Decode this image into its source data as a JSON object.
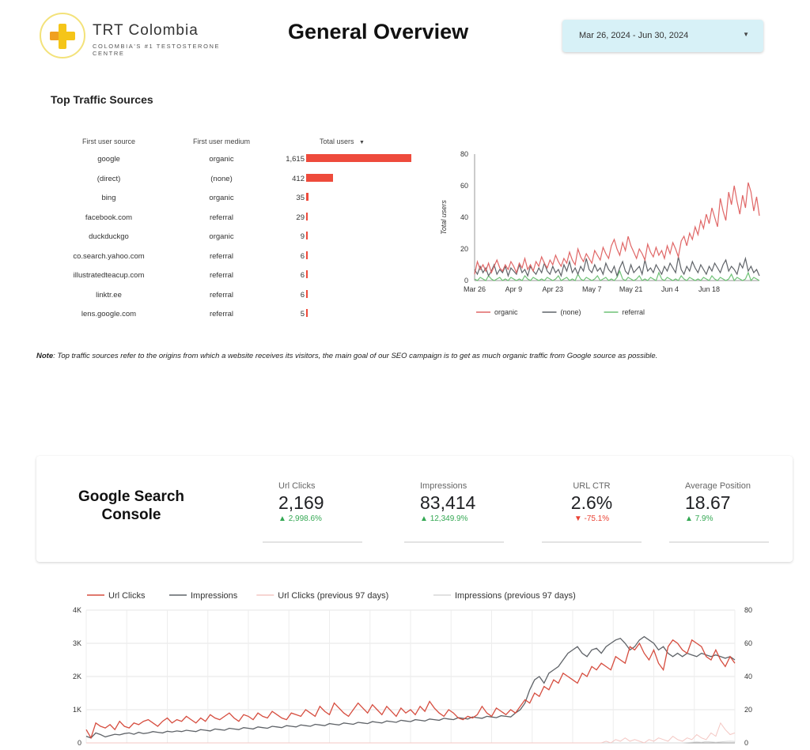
{
  "header": {
    "brand_name": "TRT Colombia",
    "brand_tagline": "COLOMBIA'S #1 TESTOSTERONE CENTRE",
    "title": "General Overview",
    "date_range": "Mar 26, 2024 - Jun 30, 2024"
  },
  "traffic": {
    "title": "Top Traffic Sources",
    "columns": [
      "First user source",
      "First user medium",
      "Total users"
    ],
    "rows": [
      {
        "source": "google",
        "medium": "organic",
        "users": "1,615",
        "value": 1615
      },
      {
        "source": "(direct)",
        "medium": "(none)",
        "users": "412",
        "value": 412
      },
      {
        "source": "bing",
        "medium": "organic",
        "users": "35",
        "value": 35
      },
      {
        "source": "facebook.com",
        "medium": "referral",
        "users": "29",
        "value": 29
      },
      {
        "source": "duckduckgo",
        "medium": "organic",
        "users": "9",
        "value": 9
      },
      {
        "source": "co.search.yahoo.com",
        "medium": "referral",
        "users": "6",
        "value": 6
      },
      {
        "source": "illustratedteacup.com",
        "medium": "referral",
        "users": "6",
        "value": 6
      },
      {
        "source": "linktr.ee",
        "medium": "referral",
        "users": "6",
        "value": 6
      },
      {
        "source": "lens.google.com",
        "medium": "referral",
        "users": "5",
        "value": 5
      }
    ],
    "note_label": "Note",
    "note_text": ": Top traffic sources refer to the origins from which a website receives its visitors, the main goal of our SEO campaign is to get as much organic traffic from Google source as possible."
  },
  "gsc": {
    "title_line1": "Google Search",
    "title_line2": "Console",
    "kpis": [
      {
        "label": "Url Clicks",
        "value": "2,169",
        "delta": "2,998.6%",
        "direction": "up"
      },
      {
        "label": "Impressions",
        "value": "83,414",
        "delta": "12,349.9%",
        "direction": "up"
      },
      {
        "label": "URL CTR",
        "value": "2.6%",
        "delta": "-75.1%",
        "direction": "down"
      },
      {
        "label": "Average Position",
        "value": "18.67",
        "delta": "7.9%",
        "direction": "up"
      }
    ]
  },
  "chart_data": [
    {
      "type": "line",
      "ylabel": "Total users",
      "xlabel": "",
      "ylim": [
        0,
        80
      ],
      "yticks": [
        0,
        20,
        40,
        60,
        80
      ],
      "xticks": [
        "Mar 26",
        "Apr 9",
        "Apr 23",
        "May 7",
        "May 21",
        "Jun 4",
        "Jun 18"
      ],
      "legend_position": "bottom",
      "grid": false,
      "series": [
        {
          "name": "organic",
          "color": "#e06666",
          "values": [
            4,
            12,
            7,
            10,
            6,
            11,
            5,
            9,
            13,
            8,
            6,
            10,
            7,
            12,
            9,
            5,
            11,
            8,
            14,
            7,
            10,
            6,
            12,
            9,
            15,
            11,
            8,
            13,
            10,
            16,
            12,
            9,
            14,
            11,
            18,
            13,
            10,
            20,
            15,
            12,
            17,
            14,
            11,
            19,
            16,
            13,
            21,
            17,
            14,
            22,
            26,
            20,
            16,
            24,
            19,
            28,
            22,
            18,
            14,
            20,
            17,
            13,
            23,
            18,
            15,
            21,
            16,
            19,
            14,
            22,
            17,
            24,
            20,
            15,
            25,
            28,
            22,
            30,
            26,
            34,
            29,
            38,
            33,
            42,
            36,
            46,
            40,
            34,
            52,
            44,
            38,
            56,
            48,
            60,
            50,
            42,
            54,
            46,
            62,
            56,
            44,
            53,
            41
          ]
        },
        {
          "name": "(none)",
          "color": "#5f6368",
          "values": [
            7,
            4,
            9,
            5,
            8,
            3,
            6,
            10,
            4,
            7,
            5,
            9,
            3,
            8,
            6,
            4,
            10,
            5,
            7,
            3,
            9,
            6,
            4,
            8,
            5,
            11,
            6,
            4,
            9,
            5,
            7,
            3,
            10,
            6,
            12,
            5,
            8,
            4,
            9,
            6,
            14,
            7,
            5,
            10,
            6,
            8,
            4,
            11,
            7,
            5,
            9,
            3,
            8,
            12,
            6,
            4,
            10,
            5,
            7,
            9,
            4,
            13,
            6,
            8,
            5,
            10,
            7,
            4,
            9,
            6,
            11,
            8,
            5,
            15,
            7,
            4,
            9,
            6,
            12,
            8,
            5,
            10,
            7,
            4,
            9,
            6,
            11,
            8,
            5,
            10,
            13,
            6,
            9,
            7,
            4,
            11,
            8,
            14,
            6,
            9,
            5,
            7,
            3
          ]
        },
        {
          "name": "referral",
          "color": "#6fc276",
          "values": [
            1,
            0,
            2,
            1,
            0,
            3,
            1,
            0,
            1,
            2,
            0,
            1,
            0,
            2,
            1,
            0,
            1,
            0,
            3,
            1,
            0,
            2,
            1,
            0,
            1,
            0,
            2,
            1,
            0,
            1,
            3,
            0,
            1,
            2,
            0,
            1,
            0,
            4,
            1,
            0,
            2,
            1,
            0,
            1,
            3,
            0,
            1,
            2,
            0,
            1,
            0,
            2,
            6,
            1,
            0,
            2,
            1,
            0,
            1,
            3,
            0,
            1,
            0,
            2,
            1,
            0,
            5,
            1,
            0,
            2,
            1,
            0,
            1,
            0,
            3,
            1,
            0,
            2,
            1,
            0,
            1,
            0,
            2,
            1,
            0,
            3,
            1,
            0,
            2,
            1,
            0,
            1,
            4,
            0,
            2,
            1,
            0,
            1,
            5,
            0,
            2,
            1,
            0
          ]
        }
      ]
    },
    {
      "type": "line",
      "xlabel": "",
      "ylabel": "",
      "ylim_left": [
        0,
        4000
      ],
      "ylim_right": [
        0,
        80
      ],
      "yticks_left": [
        "0",
        "1K",
        "2K",
        "3K",
        "4K"
      ],
      "yticks_right": [
        "0",
        "20",
        "40",
        "60",
        "80"
      ],
      "grid": true,
      "legend_position": "top",
      "series": [
        {
          "name": "Url Clicks",
          "axis": "right",
          "color": "#d64d3f",
          "values": [
            8,
            3,
            12,
            10,
            9,
            11,
            8,
            13,
            10,
            9,
            12,
            11,
            13,
            14,
            12,
            10,
            13,
            15,
            12,
            14,
            13,
            16,
            14,
            12,
            15,
            13,
            17,
            15,
            14,
            16,
            18,
            15,
            13,
            17,
            16,
            14,
            18,
            16,
            15,
            19,
            17,
            15,
            14,
            18,
            17,
            16,
            20,
            18,
            16,
            22,
            19,
            17,
            24,
            21,
            18,
            16,
            20,
            24,
            21,
            18,
            23,
            20,
            17,
            22,
            19,
            16,
            21,
            18,
            20,
            17,
            22,
            19,
            25,
            21,
            18,
            16,
            20,
            18,
            15,
            14,
            16,
            15,
            17,
            22,
            18,
            16,
            21,
            19,
            17,
            20,
            18,
            22,
            26,
            24,
            30,
            28,
            34,
            32,
            38,
            36,
            42,
            40,
            38,
            36,
            42,
            40,
            46,
            44,
            48,
            46,
            44,
            52,
            50,
            48,
            58,
            56,
            60,
            54,
            50,
            56,
            48,
            44,
            58,
            62,
            60,
            56,
            54,
            62,
            60,
            58,
            52,
            50,
            56,
            50,
            46,
            52,
            48
          ]
        },
        {
          "name": "Impressions",
          "axis": "left",
          "color": "#5f6368",
          "values": [
            200,
            150,
            300,
            250,
            180,
            220,
            260,
            240,
            280,
            300,
            260,
            320,
            280,
            300,
            340,
            320,
            300,
            350,
            330,
            360,
            340,
            380,
            360,
            340,
            400,
            380,
            360,
            420,
            400,
            380,
            440,
            420,
            400,
            460,
            440,
            420,
            480,
            460,
            440,
            500,
            480,
            460,
            520,
            500,
            480,
            540,
            520,
            500,
            560,
            540,
            520,
            580,
            560,
            540,
            600,
            580,
            560,
            620,
            600,
            580,
            640,
            620,
            600,
            660,
            640,
            620,
            680,
            660,
            640,
            700,
            680,
            660,
            720,
            700,
            680,
            740,
            720,
            700,
            760,
            740,
            720,
            780,
            760,
            740,
            800,
            780,
            760,
            820,
            800,
            780,
            900,
            1000,
            1200,
            1600,
            1900,
            2000,
            1800,
            2100,
            2200,
            2300,
            2500,
            2700,
            2800,
            2900,
            2700,
            2600,
            2800,
            2850,
            2700,
            2900,
            3000,
            3100,
            3150,
            3000,
            2800,
            2900,
            3100,
            3200,
            3100,
            3000,
            2800,
            2900,
            2700,
            2600,
            2700,
            2600,
            2700,
            2650,
            2600,
            2700,
            2650,
            2600,
            2650,
            2600,
            2550,
            2600,
            2500
          ]
        },
        {
          "name": "Url Clicks (previous 97 days)",
          "axis": "right",
          "color": "#f4c7c3",
          "values": [
            0,
            0,
            0,
            0,
            0,
            0,
            0,
            0,
            0,
            0,
            0,
            0,
            0,
            0,
            0,
            0,
            0,
            0,
            0,
            0,
            0,
            0,
            0,
            0,
            0,
            0,
            0,
            0,
            0,
            0,
            0,
            0,
            0,
            0,
            0,
            0,
            0,
            0,
            0,
            0,
            0,
            0,
            0,
            0,
            0,
            0,
            0,
            0,
            0,
            0,
            0,
            0,
            0,
            0,
            0,
            0,
            0,
            0,
            0,
            0,
            0,
            0,
            0,
            0,
            0,
            0,
            0,
            0,
            0,
            0,
            0,
            0,
            0,
            0,
            0,
            0,
            0,
            0,
            0,
            0,
            0,
            0,
            0,
            0,
            0,
            0,
            0,
            0,
            0,
            0,
            0,
            0,
            0,
            0,
            0,
            0,
            0,
            0,
            0,
            0,
            0,
            0,
            0,
            0,
            0,
            0,
            0,
            0,
            0,
            1,
            0,
            2,
            1,
            3,
            1,
            2,
            1,
            0,
            2,
            1,
            3,
            2,
            1,
            4,
            2,
            1,
            3,
            2,
            5,
            3,
            2,
            6,
            4,
            12,
            8,
            5,
            6
          ]
        },
        {
          "name": "Impressions (previous 97 days)",
          "axis": "left",
          "color": "#d7d7d7",
          "values": [
            0,
            0,
            0,
            0,
            0,
            0,
            0,
            0,
            0,
            0,
            0,
            0,
            0,
            0,
            0,
            0,
            0,
            0,
            0,
            0,
            0,
            0,
            0,
            0,
            0,
            0,
            0,
            0,
            0,
            0,
            0,
            0,
            0,
            0,
            0,
            0,
            0,
            0,
            0,
            0,
            0,
            0,
            0,
            0,
            0,
            0,
            0,
            0,
            0,
            0,
            0,
            0,
            0,
            0,
            0,
            0,
            0,
            0,
            0,
            0,
            0,
            0,
            0,
            0,
            0,
            0,
            0,
            0,
            0,
            0,
            0,
            0,
            0,
            0,
            0,
            0,
            0,
            0,
            0,
            0,
            0,
            0,
            0,
            0,
            0,
            0,
            0,
            0,
            0,
            0,
            0,
            0,
            0,
            0,
            0,
            0,
            0,
            0,
            0,
            0,
            0,
            0,
            0,
            0,
            0,
            0,
            0,
            0,
            0,
            0,
            0,
            0,
            0,
            0,
            0,
            0,
            0,
            0,
            0,
            0,
            0,
            0,
            0,
            0,
            0,
            0,
            10,
            20,
            30,
            20,
            40,
            30,
            20,
            30,
            40,
            50,
            40
          ]
        }
      ]
    }
  ]
}
